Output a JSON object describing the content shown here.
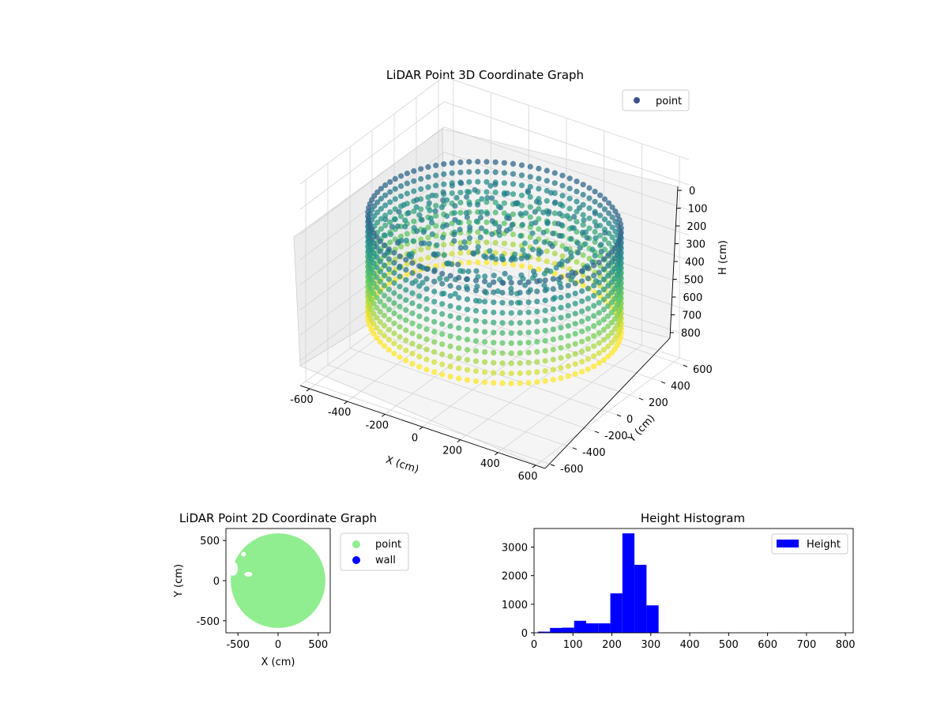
{
  "chart_data": [
    {
      "type": "scatter",
      "title": "LiDAR Point 3D Coordinate Graph",
      "xlabel": "X (cm)",
      "ylabel": "Y (cm)",
      "zlabel": "H (cm)",
      "xlim": [
        -650,
        650
      ],
      "ylim": [
        -650,
        650
      ],
      "zlim": [
        800,
        0
      ],
      "xticks": [
        -600,
        -400,
        -200,
        0,
        200,
        400,
        600
      ],
      "yticks": [
        -600,
        -400,
        -200,
        0,
        200,
        400,
        600
      ],
      "zticks": [
        0,
        100,
        200,
        300,
        400,
        500,
        600,
        700,
        800
      ],
      "legend": {
        "position": "upper-right",
        "entries": [
          {
            "label": "point",
            "color": "#3b528b"
          }
        ]
      },
      "series": [
        {
          "name": "point",
          "description_values": {
            "wall_radius_cm": 580,
            "wall_height_range_cm": [
              200,
              600
            ],
            "floor_height_range_cm": [
              230,
              320
            ]
          }
        }
      ],
      "colormap": "viridis"
    },
    {
      "type": "scatter",
      "title": "LiDAR Point 2D Coordinate Graph",
      "xlabel": "X (cm)",
      "ylabel": "Y (cm)",
      "xlim": [
        -650,
        650
      ],
      "ylim": [
        -650,
        650
      ],
      "xticks": [
        -500,
        0,
        500
      ],
      "yticks": [
        -500,
        0,
        500
      ],
      "legend": {
        "position": "outside-right",
        "entries": [
          {
            "label": "point",
            "color": "#90ee90"
          },
          {
            "label": "wall",
            "color": "#0000ff"
          }
        ]
      },
      "disk_radius_cm": 590
    },
    {
      "type": "bar",
      "title": "Height Histogram",
      "xlabel": "",
      "ylabel": "",
      "xlim": [
        0,
        820
      ],
      "ylim": [
        0,
        3650
      ],
      "xticks": [
        0,
        100,
        200,
        300,
        400,
        500,
        600,
        700,
        800
      ],
      "yticks": [
        0,
        1000,
        2000,
        3000
      ],
      "legend": {
        "position": "upper-right",
        "entries": [
          {
            "label": "Height",
            "color": "#0000ff"
          }
        ]
      },
      "bin_edges": [
        10,
        41,
        72,
        103,
        134,
        165,
        196,
        227,
        258,
        289,
        320
      ],
      "counts": [
        40,
        170,
        180,
        420,
        330,
        330,
        1380,
        3480,
        2380,
        960
      ]
    }
  ]
}
